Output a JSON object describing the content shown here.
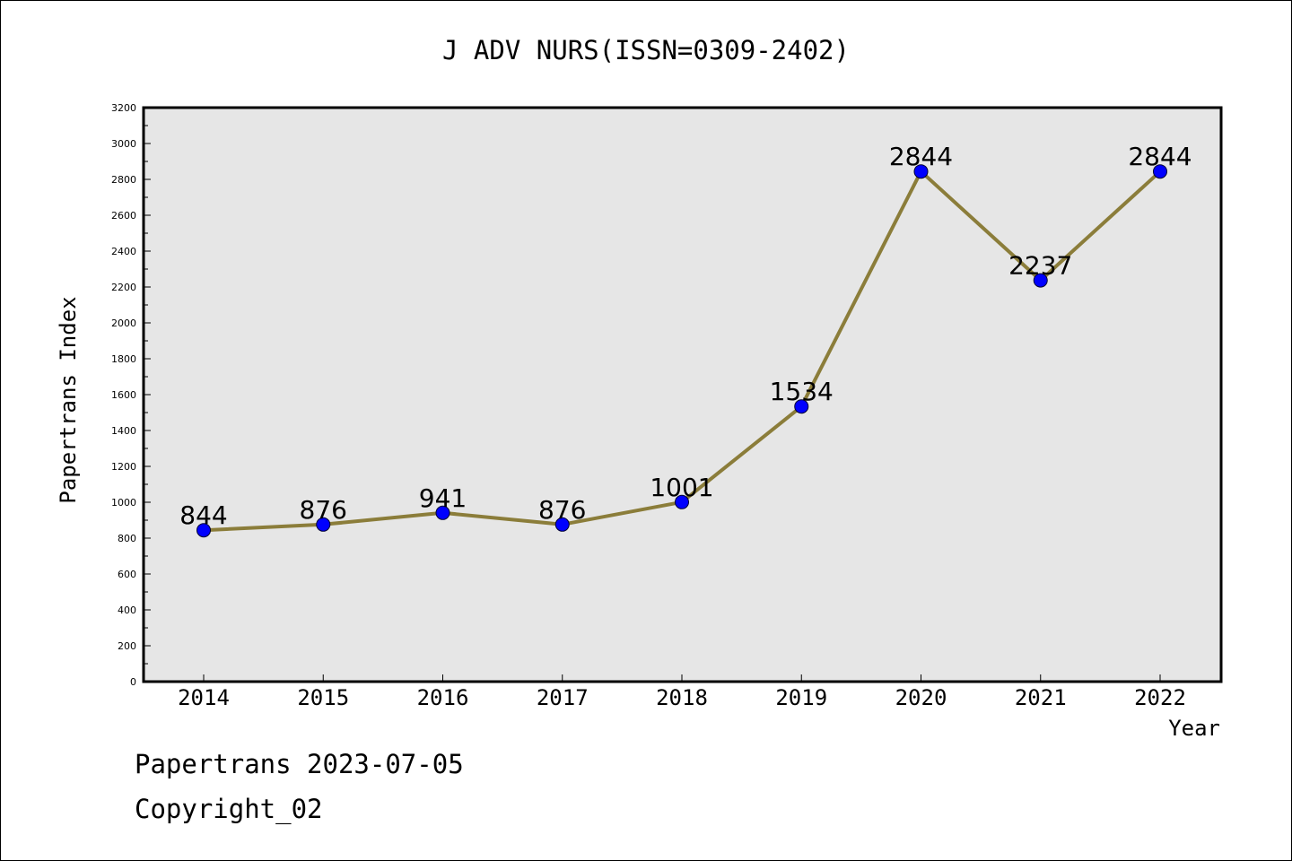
{
  "chart_data": {
    "type": "line",
    "title": "J ADV NURS(ISSN=0309-2402)",
    "xlabel": "Year",
    "ylabel": "Papertrans Index",
    "categories": [
      "2014",
      "2015",
      "2016",
      "2017",
      "2018",
      "2019",
      "2020",
      "2021",
      "2022"
    ],
    "series": [
      {
        "values": [
          844,
          876,
          941,
          876,
          1001,
          1534,
          2844,
          2237,
          2844
        ]
      }
    ],
    "data_labels": [
      "844",
      "876",
      "941",
      "876",
      "1001",
      "1534",
      "2844",
      "2237",
      "2844"
    ],
    "ylim": [
      0,
      3200
    ],
    "yticks": [
      0,
      200,
      400,
      600,
      800,
      1000,
      1200,
      1400,
      1600,
      1800,
      2000,
      2200,
      2400,
      2600,
      2800,
      3000,
      3200
    ],
    "grid": false,
    "colors": {
      "line": "#8b7d3a",
      "marker": "#0000ff",
      "plot_bg": "#e6e6e6"
    }
  },
  "footer": {
    "line1": "Papertrans 2023-07-05",
    "line2": "Copyright_02"
  }
}
